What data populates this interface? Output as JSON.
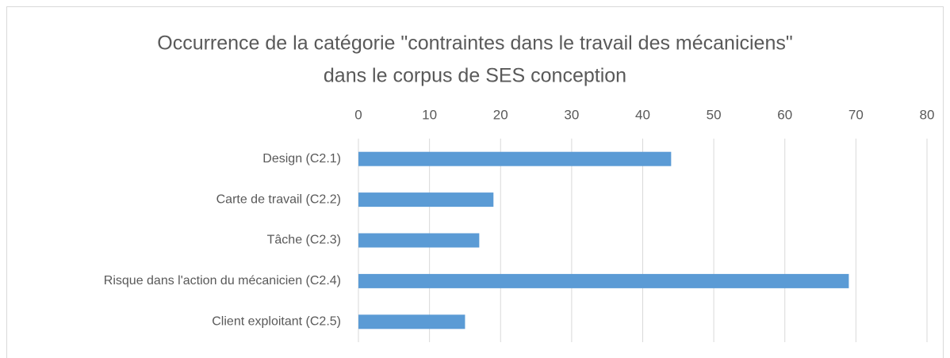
{
  "chart_data": {
    "type": "bar",
    "orientation": "horizontal",
    "title": [
      "Occurrence de la catégorie \"contraintes dans le travail des mécaniciens\"",
      "dans le corpus de SES conception"
    ],
    "categories": [
      "Design (C2.1)",
      "Carte de travail (C2.2)",
      "Tâche (C2.3)",
      "Risque dans l'action du mécanicien (C2.4)",
      "Client exploitant (C2.5)"
    ],
    "values": [
      44,
      19,
      17,
      69,
      15
    ],
    "color": "#5b9bd5",
    "xlim": [
      0,
      80
    ],
    "xticks": [
      0,
      10,
      20,
      30,
      40,
      50,
      60,
      70,
      80
    ],
    "grid": true
  }
}
